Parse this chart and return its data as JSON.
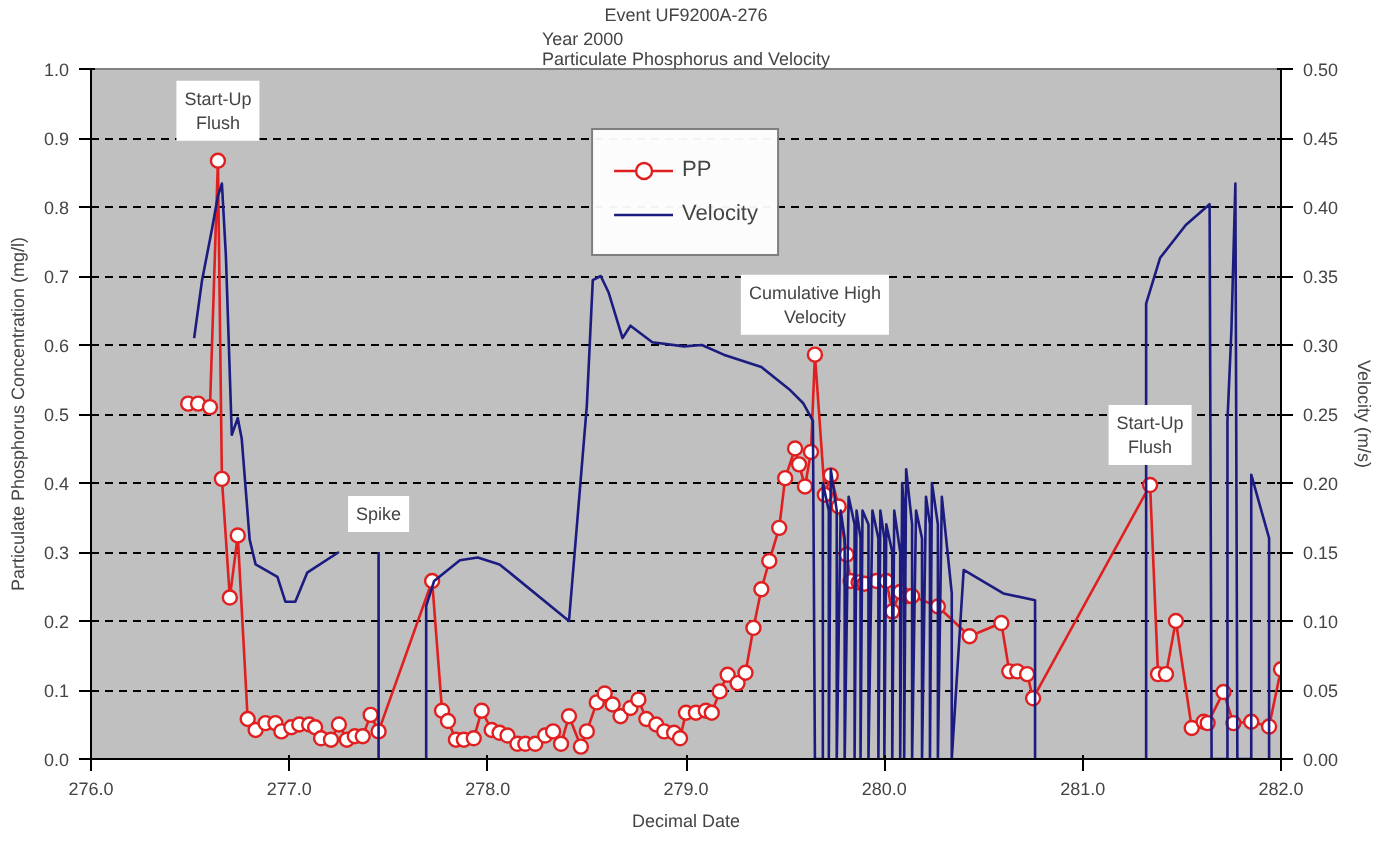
{
  "chart_data": {
    "type": "line",
    "title": "Event UF9200A-276",
    "subtitle": "Year 2000\nParticulate Phosphorus and Velocity",
    "xlabel": "Decimal Date",
    "ylabel": "Particulate Phosphorus Concentration (mg/l)",
    "y2label": "Velocity (m/s)",
    "xlim": [
      276,
      282
    ],
    "xticks": [
      {
        "value": 276,
        "label": "276.0"
      },
      {
        "value": 277,
        "label": "277.0"
      },
      {
        "value": 278,
        "label": "278.0"
      },
      {
        "value": 279,
        "label": "279.0"
      },
      {
        "value": 280,
        "label": "280.0"
      },
      {
        "value": 281,
        "label": "281.0"
      },
      {
        "value": 282,
        "label": "282.0"
      }
    ],
    "ylim": [
      0,
      1
    ],
    "yticks": [
      {
        "value": 0,
        "label": "0.0"
      },
      {
        "value": 0.1,
        "label": "0.1"
      },
      {
        "value": 0.2,
        "label": "0.2"
      },
      {
        "value": 0.3,
        "label": "0.3"
      },
      {
        "value": 0.4,
        "label": "0.4"
      },
      {
        "value": 0.5,
        "label": "0.5"
      },
      {
        "value": 0.6,
        "label": "0.6"
      },
      {
        "value": 0.7,
        "label": "0.7"
      },
      {
        "value": 0.8,
        "label": "0.8"
      },
      {
        "value": 0.9,
        "label": "0.9"
      },
      {
        "value": 1,
        "label": "1.0"
      }
    ],
    "y2lim": [
      0,
      0.5
    ],
    "y2ticks": [
      {
        "value": 0,
        "label": "0.00"
      },
      {
        "value": 0.05,
        "label": "0.05"
      },
      {
        "value": 0.1,
        "label": "0.10"
      },
      {
        "value": 0.15,
        "label": "0.15"
      },
      {
        "value": 0.2,
        "label": "0.20"
      },
      {
        "value": 0.25,
        "label": "0.25"
      },
      {
        "value": 0.3,
        "label": "0.30"
      },
      {
        "value": 0.35,
        "label": "0.35"
      },
      {
        "value": 0.4,
        "label": "0.40"
      },
      {
        "value": 0.45,
        "label": "0.45"
      },
      {
        "value": 0.5,
        "label": "0.50"
      }
    ],
    "grid": "y",
    "legend": "top",
    "series": [
      {
        "name": "PP",
        "color": "#e02020",
        "marker": "circle",
        "x": [
          276.49,
          276.54,
          276.6,
          276.64,
          276.66,
          276.7,
          276.74,
          276.79,
          276.83,
          276.88,
          276.93,
          276.96,
          277.01,
          277.05,
          277.1,
          277.13,
          277.16,
          277.21,
          277.25,
          277.29,
          277.33,
          277.37,
          277.41,
          277.45,
          277.72,
          277.77,
          277.8,
          277.84,
          277.88,
          277.93,
          277.97,
          278.02,
          278.06,
          278.1,
          278.15,
          278.19,
          278.24,
          278.29,
          278.33,
          278.37,
          278.41,
          278.47,
          278.5,
          278.55,
          278.59,
          278.63,
          278.67,
          278.72,
          278.76,
          278.8,
          278.85,
          278.89,
          278.94,
          278.97,
          279.0,
          279.05,
          279.1,
          279.13,
          279.17,
          279.21,
          279.26,
          279.3,
          279.34,
          279.38,
          279.42,
          279.47,
          279.5,
          279.55,
          279.57,
          279.6,
          279.63,
          279.65,
          279.7,
          279.73,
          279.77,
          279.81,
          279.83,
          279.87,
          279.9,
          279.96,
          280.01,
          280.04,
          280.08,
          280.12,
          280.14,
          280.27,
          280.43,
          280.59,
          280.63,
          280.67,
          280.72,
          280.75,
          281.34,
          281.38,
          281.42,
          281.47,
          281.55,
          281.61,
          281.63,
          281.71,
          281.76,
          281.85,
          281.94,
          282.0
        ],
        "values": [
          0.515,
          0.515,
          0.51,
          0.867,
          0.406,
          0.234,
          0.324,
          0.058,
          0.042,
          0.052,
          0.052,
          0.04,
          0.046,
          0.05,
          0.05,
          0.046,
          0.03,
          0.028,
          0.05,
          0.028,
          0.033,
          0.033,
          0.064,
          0.04,
          0.258,
          0.07,
          0.055,
          0.028,
          0.028,
          0.03,
          0.07,
          0.042,
          0.038,
          0.034,
          0.022,
          0.022,
          0.022,
          0.034,
          0.04,
          0.022,
          0.062,
          0.018,
          0.04,
          0.082,
          0.095,
          0.079,
          0.062,
          0.074,
          0.086,
          0.058,
          0.05,
          0.04,
          0.038,
          0.03,
          0.067,
          0.067,
          0.07,
          0.067,
          0.098,
          0.122,
          0.11,
          0.125,
          0.19,
          0.246,
          0.287,
          0.335,
          0.407,
          0.45,
          0.427,
          0.395,
          0.445,
          0.586,
          0.383,
          0.411,
          0.366,
          0.296,
          0.258,
          0.256,
          0.254,
          0.258,
          0.258,
          0.214,
          0.242,
          0.236,
          0.236,
          0.221,
          0.178,
          0.197,
          0.127,
          0.127,
          0.123,
          0.088,
          0.397,
          0.123,
          0.123,
          0.2,
          0.045,
          0.054,
          0.052,
          0.097,
          0.052,
          0.054,
          0.047,
          0.13
        ]
      },
      {
        "name": "Velocity",
        "color": "#1c1c80",
        "marker": "none",
        "axis": "y2",
        "x": [
          276.52,
          276.56,
          276.61,
          276.64,
          276.66,
          276.68,
          276.71,
          276.74,
          276.76,
          276.8,
          276.83,
          276.94,
          276.98,
          277.03,
          277.09,
          277.25,
          277.35,
          277.45,
          277.45,
          277.55,
          277.69,
          277.69,
          277.73,
          277.86,
          277.95,
          278.06,
          278.41,
          278.5,
          278.53,
          278.57,
          278.61,
          278.68,
          278.72,
          278.83,
          278.99,
          279.08,
          279.19,
          279.38,
          279.52,
          279.59,
          279.64,
          279.65,
          279.69,
          279.69,
          279.72,
          279.72,
          279.73,
          279.76,
          279.76,
          279.78,
          279.8,
          279.8,
          279.82,
          279.85,
          279.85,
          279.86,
          279.88,
          279.88,
          279.89,
          279.92,
          279.92,
          279.94,
          279.97,
          279.97,
          279.98,
          280.0,
          280.0,
          280.01,
          280.04,
          280.04,
          280.05,
          280.08,
          280.08,
          280.09,
          280.1,
          280.1,
          280.11,
          280.14,
          280.14,
          280.16,
          280.19,
          280.19,
          280.21,
          280.23,
          280.23,
          280.24,
          280.27,
          280.27,
          280.29,
          280.34,
          280.34,
          280.4,
          280.6,
          280.76,
          280.76,
          281.0,
          281.32,
          281.32,
          281.39,
          281.52,
          281.64,
          281.65,
          281.73,
          281.73,
          281.75,
          281.77,
          281.78,
          281.85,
          281.85,
          281.94,
          281.94
        ],
        "values": [
          0.305,
          0.347,
          0.384,
          0.408,
          0.417,
          0.365,
          0.235,
          0.247,
          0.232,
          0.159,
          0.141,
          0.132,
          0.114,
          0.114,
          0.135,
          0.15,
          null,
          0.15,
          0,
          null,
          0,
          0.111,
          0.129,
          0.144,
          0.146,
          0.141,
          0.1,
          0.256,
          0.347,
          0.35,
          0.338,
          0.305,
          0.314,
          0.302,
          0.299,
          0.3,
          0.293,
          0.284,
          0.268,
          0.258,
          0.245,
          0,
          0,
          0.2,
          0.18,
          0,
          0.21,
          0.18,
          0,
          0.18,
          0.16,
          0,
          0.19,
          0.17,
          0,
          0.18,
          0.16,
          0,
          0.18,
          0.17,
          0,
          0.18,
          0.16,
          0,
          0.18,
          0.16,
          0,
          0.17,
          0.15,
          0,
          0.18,
          0.15,
          0,
          0.2,
          0.18,
          0,
          0.21,
          0.17,
          0,
          0.18,
          0.16,
          0,
          0.19,
          0.17,
          0,
          0.2,
          0.17,
          0,
          0.19,
          0.12,
          0,
          0.137,
          0.12,
          0.115,
          0,
          null,
          0,
          0.33,
          0.363,
          0.387,
          0.402,
          0,
          0,
          0.245,
          0.311,
          0.417,
          0,
          0,
          0.206,
          0.16,
          0
        ]
      }
    ],
    "annotations": [
      {
        "text": "Start-Up\nFlush",
        "x": 276.64,
        "y": 0.867
      },
      {
        "text": "Spike",
        "x": 277.45,
        "y": 0.3
      },
      {
        "text": "Cumulative High\nVelocity",
        "x": 279.65,
        "y": 0.586
      },
      {
        "text": "Start-Up\nFlush",
        "x": 281.34,
        "y": 0.397
      }
    ]
  }
}
